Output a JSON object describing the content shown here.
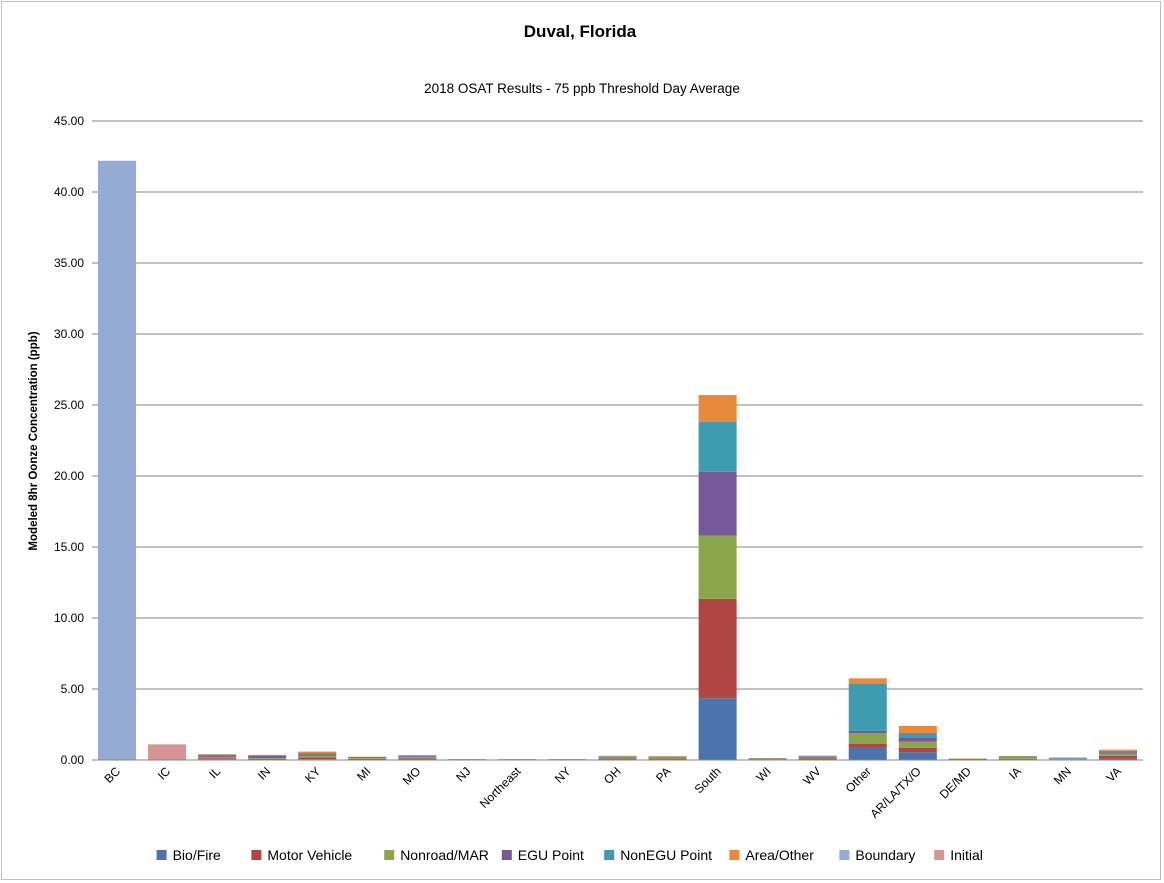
{
  "chart_data": {
    "type": "bar",
    "stacked": true,
    "title": "Duval, Florida",
    "subtitle": "2018 OSAT Results - 75 ppb Threshold Day Average",
    "xlabel": "",
    "ylabel": "Modeled 8hr Oonze Concentration (ppb)",
    "ylim": [
      0,
      45
    ],
    "yticks": [
      "0.00",
      "5.00",
      "10.00",
      "15.00",
      "20.00",
      "25.00",
      "30.00",
      "35.00",
      "40.00",
      "45.00"
    ],
    "grid": true,
    "legend_position": "bottom",
    "categories": [
      "BC",
      "IC",
      "IL",
      "IN",
      "KY",
      "MI",
      "MO",
      "NJ",
      "Northeast",
      "NY",
      "OH",
      "PA",
      "South",
      "WI",
      "WV",
      "Other",
      "AR/LA/TX/O",
      "DE/MD",
      "IA",
      "MN",
      "VA"
    ],
    "series": [
      {
        "name": "Bio/Fire",
        "color": "#4a74ab",
        "values": [
          0,
          0,
          0.05,
          0.03,
          0.05,
          0.03,
          0.04,
          0.01,
          0.01,
          0.01,
          0.04,
          0.04,
          4.35,
          0.02,
          0.04,
          0.85,
          0.55,
          0.02,
          0.04,
          0.02,
          0.1
        ]
      },
      {
        "name": "Motor Vehicle",
        "color": "#b04542",
        "values": [
          0,
          0,
          0.08,
          0.05,
          0.12,
          0.05,
          0.08,
          0.01,
          0.01,
          0.01,
          0.06,
          0.06,
          7.0,
          0.02,
          0.07,
          0.3,
          0.3,
          0.01,
          0.04,
          0.03,
          0.2
        ]
      },
      {
        "name": "Nonroad/MAR",
        "color": "#8ba64a",
        "values": [
          0,
          0,
          0.09,
          0.05,
          0.12,
          0.05,
          0.09,
          0.01,
          0.01,
          0.01,
          0.08,
          0.05,
          4.45,
          0.03,
          0.06,
          0.75,
          0.45,
          0.02,
          0.07,
          0.04,
          0.15
        ]
      },
      {
        "name": "EGU Point",
        "color": "#77599a",
        "values": [
          0,
          0,
          0.1,
          0.15,
          0.12,
          0.05,
          0.05,
          0.01,
          0.01,
          0.01,
          0.05,
          0.05,
          4.5,
          0.03,
          0.07,
          0.15,
          0.25,
          0.02,
          0.05,
          0.04,
          0.1
        ]
      },
      {
        "name": "NonEGU Point",
        "color": "#3f9bb0",
        "values": [
          0,
          0,
          0.06,
          0.05,
          0.08,
          0.03,
          0.05,
          0.01,
          0.01,
          0.01,
          0.04,
          0.04,
          3.5,
          0.02,
          0.03,
          3.3,
          0.35,
          0.02,
          0.05,
          0.03,
          0.1
        ]
      },
      {
        "name": "Area/Other",
        "color": "#e8893c",
        "values": [
          0,
          0,
          0.03,
          0.03,
          0.1,
          0.02,
          0.04,
          0.01,
          0.01,
          0.01,
          0.03,
          0.03,
          1.9,
          0.01,
          0.04,
          0.4,
          0.5,
          0.01,
          0.03,
          0.02,
          0.08
        ]
      },
      {
        "name": "Boundary",
        "color": "#95abd4",
        "values": [
          42.2,
          0,
          0,
          0,
          0,
          0,
          0,
          0,
          0,
          0,
          0,
          0,
          0,
          0,
          0,
          0,
          0,
          0,
          0,
          0,
          0
        ]
      },
      {
        "name": "Initial",
        "color": "#d59593",
        "values": [
          0,
          1.1,
          0,
          0,
          0,
          0,
          0,
          0,
          0,
          0,
          0,
          0,
          0,
          0,
          0,
          0,
          0,
          0,
          0,
          0,
          0
        ]
      }
    ]
  }
}
